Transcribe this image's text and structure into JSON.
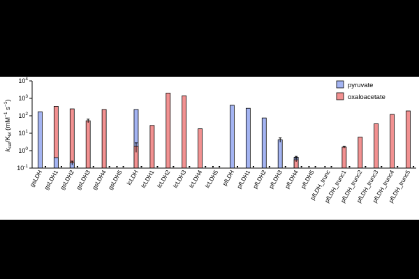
{
  "chart_data": {
    "type": "bar",
    "log_scale": true,
    "ylabel_parts": {
      "k1": "k",
      "s1": "cat",
      "slash": "/K",
      "s2": "M",
      "unit_open": " (mM",
      "unit_exp1": "−1",
      "unit_mid": " s",
      "unit_exp2": "−1",
      "unit_close": ")"
    },
    "ylim": [
      0.1,
      10000
    ],
    "y_ticks": [
      {
        "value": 0.1,
        "base": "10",
        "exp": "-1"
      },
      {
        "value": 1,
        "base": "10",
        "exp": "0"
      },
      {
        "value": 10,
        "base": "10",
        "exp": "1"
      },
      {
        "value": 100,
        "base": "10",
        "exp": "2"
      },
      {
        "value": 1000,
        "base": "10",
        "exp": "3"
      },
      {
        "value": 10000,
        "base": "10",
        "exp": "4"
      }
    ],
    "categories": [
      "gsLDH",
      "gsLDH1",
      "gsLDH2",
      "gsLDH3",
      "gsLDH4",
      "gsLDH5",
      "lcLDH",
      "lcLDH1",
      "lcLDH2",
      "lcLDH3",
      "lcLDH4",
      "lcLDH5",
      "pfLDH",
      "pfLDH1",
      "pfLDH2",
      "pfLDH3",
      "pfLDH4",
      "pfLDH5",
      "pfLDH_trunc",
      "pfLDH_trunc1",
      "pfLDH_trunc2",
      "pfLDH_trunc3",
      "pfLDH_trunc4",
      "pfLDH_trunc5"
    ],
    "series": [
      {
        "name": "pyruvate",
        "color": "#a4b4f2",
        "values": [
          170,
          null,
          null,
          null,
          null,
          null,
          230,
          null,
          null,
          null,
          null,
          null,
          400,
          270,
          75,
          null,
          null,
          null,
          null,
          null,
          null,
          null,
          null,
          null
        ],
        "errors": [
          0,
          null,
          null,
          null,
          null,
          null,
          0,
          null,
          null,
          null,
          null,
          null,
          0,
          0,
          0,
          null,
          null,
          null,
          null,
          null,
          null,
          null,
          null,
          null
        ]
      },
      {
        "name": "oxaloacetate",
        "color": "#f29191",
        "values": [
          null,
          350,
          250,
          52,
          230,
          null,
          null,
          28,
          2000,
          1400,
          18,
          null,
          null,
          null,
          null,
          null,
          null,
          null,
          null,
          null,
          null,
          null,
          null,
          null
        ],
        "errors": [
          null,
          0,
          0,
          12,
          0,
          null,
          null,
          0,
          0,
          0,
          0,
          null,
          null,
          null,
          null,
          null,
          null,
          null,
          null,
          null,
          null,
          null,
          null,
          null
        ]
      },
      {
        "name": "pyruvate",
        "color": "#a4b4f2",
        "values": [
          null,
          0.4,
          0.2,
          null,
          null,
          null,
          null,
          null,
          null,
          null,
          null,
          null,
          null,
          null,
          null,
          4.2,
          0.42,
          null,
          null,
          null,
          null,
          null,
          null,
          null
        ],
        "errors": [
          null,
          0,
          0.05,
          null,
          null,
          null,
          null,
          null,
          null,
          null,
          null,
          null,
          null,
          null,
          null,
          1.2,
          0.05,
          null,
          null,
          null,
          null,
          null,
          null,
          null
        ]
      },
      {
        "name": "oxaloacetate",
        "color": "#f29191",
        "values": [
          null,
          null,
          null,
          null,
          null,
          null,
          1.8,
          null,
          null,
          null,
          null,
          null,
          null,
          null,
          null,
          null,
          0.3,
          null,
          null,
          1.6,
          6,
          35,
          120,
          190
        ],
        "errors": [
          null,
          null,
          null,
          null,
          null,
          null,
          1.0,
          null,
          null,
          null,
          null,
          null,
          null,
          null,
          null,
          null,
          0.07,
          null,
          null,
          0.2,
          0,
          0,
          0,
          0
        ]
      }
    ],
    "legend": {
      "position": "top-right",
      "items": [
        {
          "label": "pyruvate",
          "color": "#a4b4f2"
        },
        {
          "label": "oxaloacetate",
          "color": "#f29191"
        }
      ]
    },
    "grid": false
  }
}
